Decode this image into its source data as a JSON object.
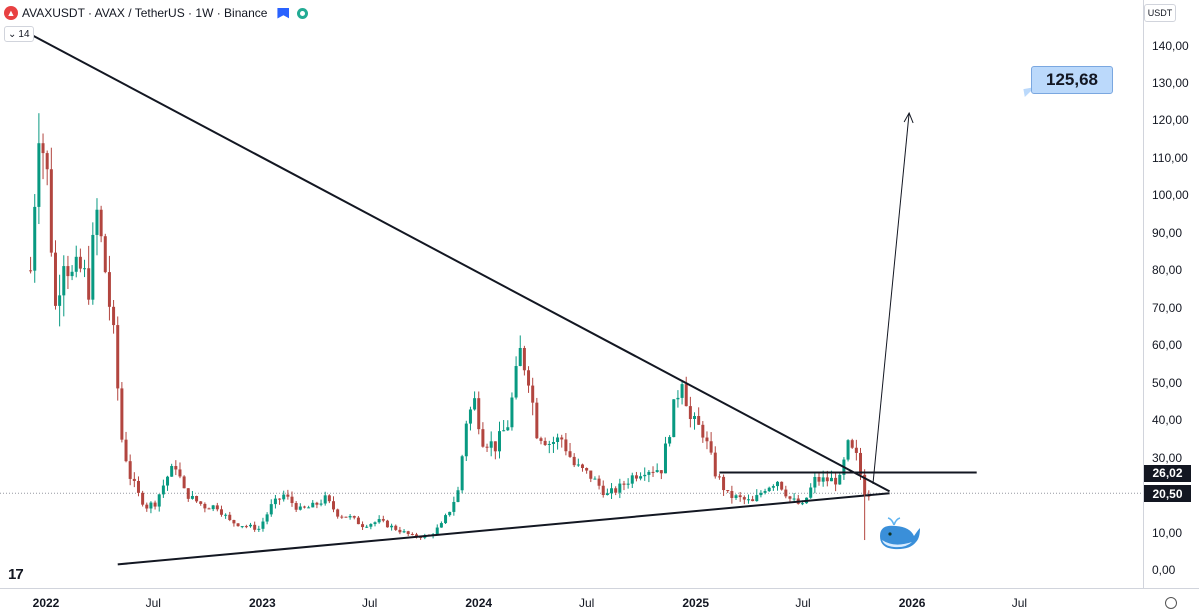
{
  "header": {
    "symbol": "AVAXUSDT · AVAX / TetherUS · 1W · Binance",
    "logo_icon": "avax-logo",
    "indicator_value": "14"
  },
  "price_axis": {
    "currency": "USDT",
    "ticks": [
      "140,00",
      "130,00",
      "120,00",
      "110,00",
      "100,00",
      "90,00",
      "80,00",
      "70,00",
      "60,00",
      "50,00",
      "40,00",
      "30,00",
      "20,00",
      "10,00",
      "0,00"
    ],
    "labels": {
      "level": "26,02",
      "current": "20,50"
    }
  },
  "time_axis": {
    "ticks": [
      {
        "label": "2022",
        "year": true
      },
      {
        "label": "Jul",
        "year": false
      },
      {
        "label": "2023",
        "year": true
      },
      {
        "label": "Jul",
        "year": false
      },
      {
        "label": "2024",
        "year": true
      },
      {
        "label": "Jul",
        "year": false
      },
      {
        "label": "2025",
        "year": true
      },
      {
        "label": "Jul",
        "year": false
      },
      {
        "label": "2026",
        "year": true
      },
      {
        "label": "Jul",
        "year": false
      }
    ]
  },
  "annotations": {
    "target_label": "125,68",
    "whale_icon": "whale-emoji"
  },
  "colors": {
    "up": "#089981",
    "down": "#b2453f",
    "line": "#131722",
    "callout_bg": "#bbd9fb"
  },
  "chart_data": {
    "type": "candlestick",
    "title": "AVAXUSDT · AVAX / TetherUS · 1W · Binance",
    "ylim": [
      0,
      140
    ],
    "yticks": [
      140,
      130,
      120,
      110,
      100,
      90,
      80,
      70,
      60,
      50,
      40,
      30,
      20,
      10,
      0
    ],
    "x_range": [
      "2021-11-28",
      "2026-09-01"
    ],
    "series": [
      {
        "name": "AVAXUSDT",
        "points": [
          [
            "2021-12-06",
            80
          ],
          [
            "2021-12-20",
            120
          ],
          [
            "2022-01-03",
            105
          ],
          [
            "2022-01-17",
            70
          ],
          [
            "2022-01-31",
            85
          ],
          [
            "2022-02-14",
            78
          ],
          [
            "2022-02-28",
            80
          ],
          [
            "2022-03-14",
            76
          ],
          [
            "2022-03-28",
            95
          ],
          [
            "2022-04-11",
            80
          ],
          [
            "2022-04-25",
            62
          ],
          [
            "2022-05-09",
            35
          ],
          [
            "2022-05-23",
            25
          ],
          [
            "2022-06-06",
            20
          ],
          [
            "2022-06-20",
            17
          ],
          [
            "2022-07-04",
            18
          ],
          [
            "2022-07-25",
            25
          ],
          [
            "2022-08-08",
            28
          ],
          [
            "2022-08-22",
            21
          ],
          [
            "2022-09-05",
            19
          ],
          [
            "2022-09-26",
            17
          ],
          [
            "2022-10-17",
            17
          ],
          [
            "2022-11-07",
            13
          ],
          [
            "2022-11-28",
            12
          ],
          [
            "2022-12-26",
            11
          ],
          [
            "2023-01-16",
            17
          ],
          [
            "2023-02-06",
            20
          ],
          [
            "2023-03-06",
            16
          ],
          [
            "2023-03-27",
            17
          ],
          [
            "2023-04-17",
            19
          ],
          [
            "2023-05-08",
            15
          ],
          [
            "2023-05-29",
            14
          ],
          [
            "2023-06-19",
            12
          ],
          [
            "2023-07-17",
            13
          ],
          [
            "2023-08-14",
            11
          ],
          [
            "2023-09-11",
            9
          ],
          [
            "2023-10-09",
            9
          ],
          [
            "2023-10-30",
            12
          ],
          [
            "2023-11-13",
            16
          ],
          [
            "2023-11-27",
            21
          ],
          [
            "2023-12-11",
            40
          ],
          [
            "2023-12-25",
            45
          ],
          [
            "2024-01-08",
            35
          ],
          [
            "2024-01-29",
            33
          ],
          [
            "2024-02-19",
            39
          ],
          [
            "2024-03-11",
            58
          ],
          [
            "2024-03-25",
            52
          ],
          [
            "2024-04-08",
            37
          ],
          [
            "2024-04-29",
            34
          ],
          [
            "2024-05-20",
            35
          ],
          [
            "2024-06-10",
            28
          ],
          [
            "2024-07-08",
            25
          ],
          [
            "2024-08-05",
            20
          ],
          [
            "2024-08-26",
            22
          ],
          [
            "2024-09-16",
            25
          ],
          [
            "2024-10-07",
            27
          ],
          [
            "2024-11-04",
            27
          ],
          [
            "2024-11-25",
            43
          ],
          [
            "2024-12-09",
            52
          ],
          [
            "2024-12-23",
            40
          ],
          [
            "2025-01-13",
            37
          ],
          [
            "2025-02-03",
            26
          ],
          [
            "2025-02-24",
            20
          ],
          [
            "2025-03-17",
            19
          ],
          [
            "2025-04-07",
            18
          ],
          [
            "2025-04-28",
            22
          ],
          [
            "2025-05-19",
            24
          ],
          [
            "2025-06-09",
            19
          ],
          [
            "2025-06-30",
            17
          ],
          [
            "2025-07-21",
            24
          ],
          [
            "2025-08-11",
            24
          ],
          [
            "2025-09-01",
            24
          ],
          [
            "2025-09-15",
            33
          ],
          [
            "2025-09-29",
            30
          ],
          [
            "2025-10-13",
            21
          ],
          [
            "2025-10-20",
            20.5
          ]
        ]
      }
    ],
    "lines": [
      {
        "name": "descending-resistance",
        "from": [
          "2021-12-06",
          143
        ],
        "to": [
          "2025-11-24",
          21
        ]
      },
      {
        "name": "ascending-support",
        "from": [
          "2022-05-02",
          1.5
        ],
        "to": [
          "2025-11-24",
          20.5
        ]
      },
      {
        "name": "horizontal-resistance",
        "from": [
          "2025-02-10",
          26.02
        ],
        "to": [
          "2026-04-20",
          26.02
        ]
      },
      {
        "name": "projection-arrow",
        "from": [
          "2025-10-27",
          23
        ],
        "to": [
          "2025-12-27",
          122
        ]
      }
    ],
    "horizontal_levels": [
      26.02,
      20.5
    ],
    "target": 125.68
  }
}
